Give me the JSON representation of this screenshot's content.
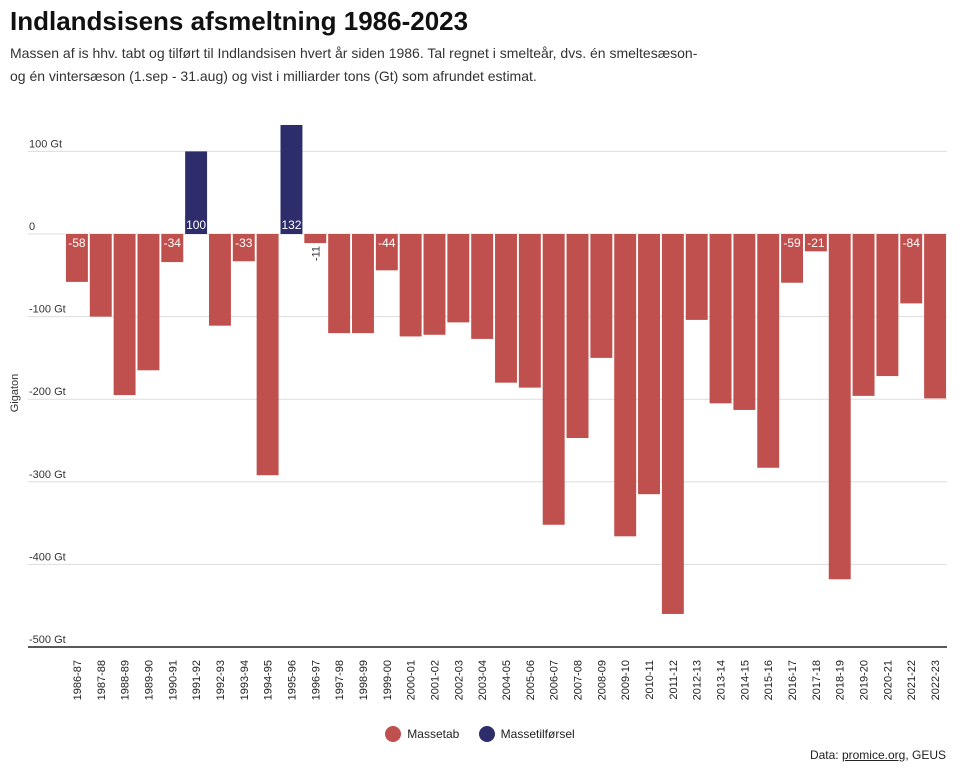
{
  "header": {
    "title": "Indlandsisens afsmeltning 1986-2023",
    "subtitle": "Massen af is hhv. tabt og tilført til Indlandsisen hvert år siden 1986. Tal regnet i smelteår, dvs. én smeltesæson- og én vintersæson (1.sep - 31.aug) og vist i milliarder tons (Gt) som afrundet estimat."
  },
  "chart_data": {
    "type": "bar",
    "ylabel": "Gigaton",
    "ylim": [
      -500,
      130
    ],
    "y_ticks": [
      100,
      0,
      -100,
      -200,
      -300,
      -400,
      -500
    ],
    "y_tick_labels": [
      "100 Gt",
      "0",
      "-100 Gt",
      "-200 Gt",
      "-300 Gt",
      "-400 Gt",
      "-500 Gt"
    ],
    "categories": [
      "1986-87",
      "1987-88",
      "1988-89",
      "1989-90",
      "1990-91",
      "1991-92",
      "1992-93",
      "1993-94",
      "1994-95",
      "1995-96",
      "1996-97",
      "1997-98",
      "1998-99",
      "1999-00",
      "2000-01",
      "2001-02",
      "2002-03",
      "2003-04",
      "2004-05",
      "2005-06",
      "2006-07",
      "2007-08",
      "2008-09",
      "2009-10",
      "2010-11",
      "2011-12",
      "2012-13",
      "2013-14",
      "2014-15",
      "2015-16",
      "2016-17",
      "2017-18",
      "2018-19",
      "2019-20",
      "2020-21",
      "2021-22",
      "2022-23"
    ],
    "values": [
      -58,
      -100,
      -195,
      -165,
      -34,
      100,
      -111,
      -33,
      -292,
      132,
      -11,
      -120,
      -120,
      -44,
      -124,
      -122,
      -107,
      -127,
      -180,
      -186,
      -352,
      -247,
      -150,
      -366,
      -315,
      -460,
      -104,
      -205,
      -213,
      -283,
      -59,
      -21,
      -418,
      -196,
      -172,
      -84,
      -199
    ],
    "data_labels": [
      {
        "index": 0,
        "text": "-58"
      },
      {
        "index": 4,
        "text": "-34"
      },
      {
        "index": 5,
        "text": "100"
      },
      {
        "index": 7,
        "text": "-33"
      },
      {
        "index": 9,
        "text": "132"
      },
      {
        "index": 10,
        "text": "-11"
      },
      {
        "index": 13,
        "text": "-44"
      },
      {
        "index": 30,
        "text": "-59"
      },
      {
        "index": 31,
        "text": "-21"
      },
      {
        "index": 35,
        "text": "-84"
      }
    ],
    "colors": {
      "loss": "#c0504d",
      "gain": "#2c2d6a"
    },
    "legend": [
      {
        "name": "Massetab",
        "color": "#c0504d"
      },
      {
        "name": "Massetilførsel",
        "color": "#2c2d6a"
      }
    ]
  },
  "footer": {
    "source_prefix": "Data: ",
    "source_link": "promice.org",
    "source_suffix": ", GEUS"
  }
}
